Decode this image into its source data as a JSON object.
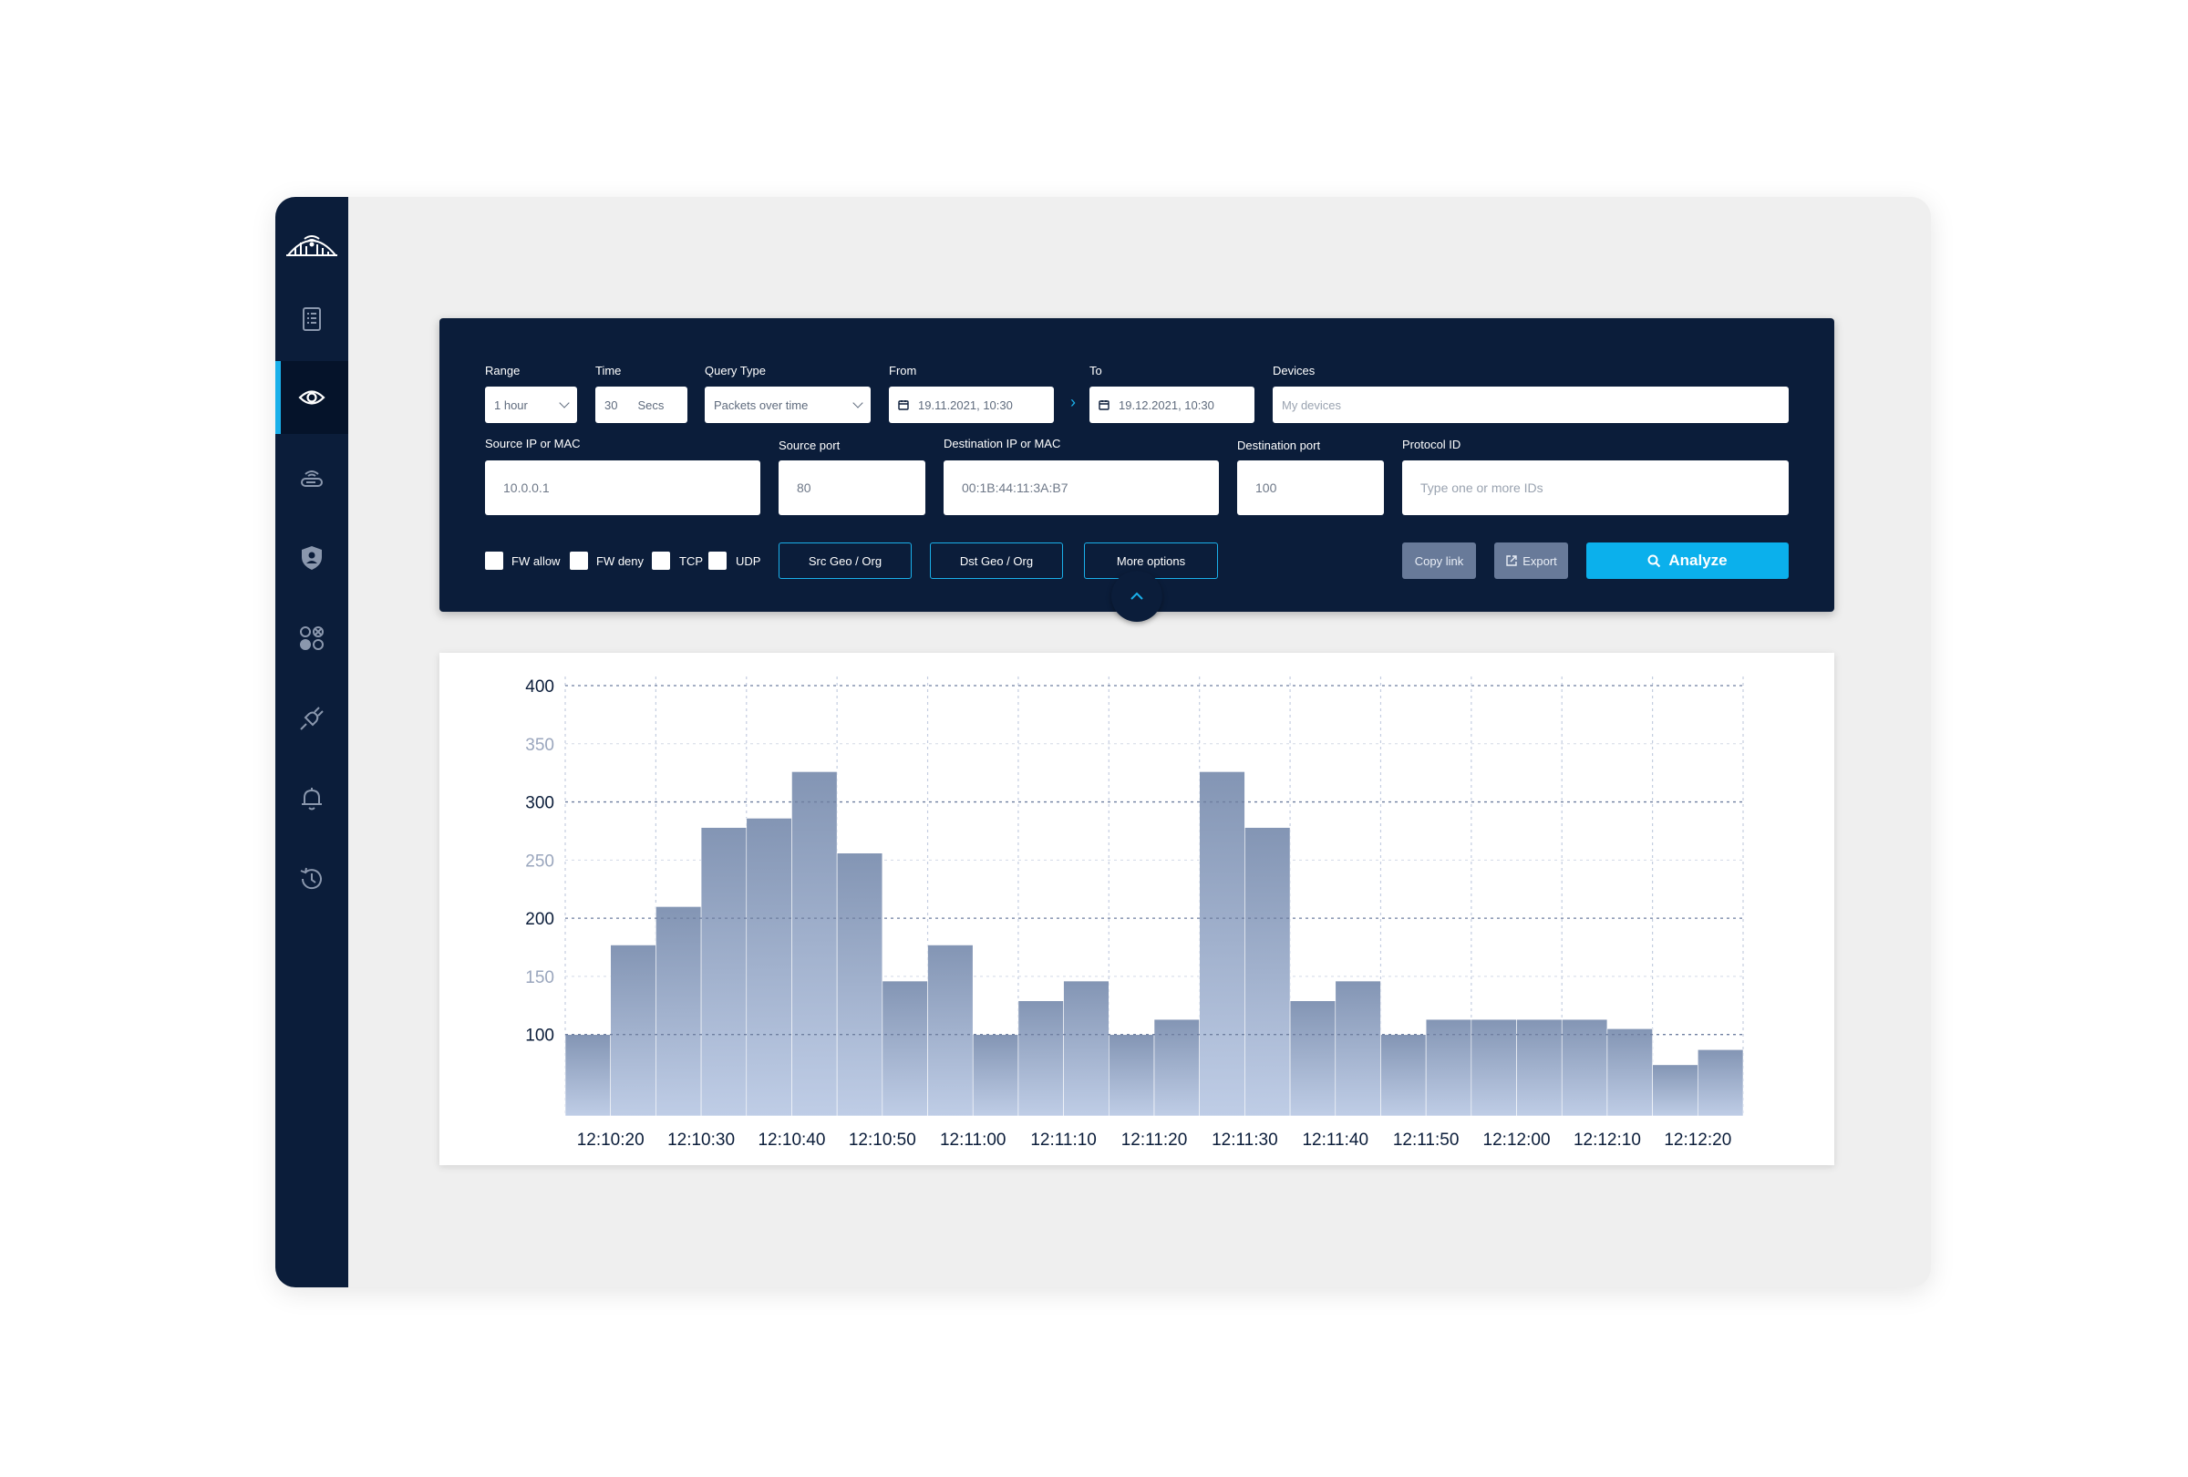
{
  "query": {
    "range": {
      "label": "Range",
      "value": "1 hour"
    },
    "time": {
      "label": "Time",
      "value": "30",
      "unit": "Secs"
    },
    "query_type": {
      "label": "Query Type",
      "value": "Packets over time"
    },
    "from": {
      "label": "From",
      "value": "19.11.2021, 10:30"
    },
    "to": {
      "label": "To",
      "value": "19.12.2021, 10:30"
    },
    "devices": {
      "label": "Devices",
      "placeholder": "My devices"
    },
    "source_ip": {
      "label": "Source IP or MAC",
      "value": "10.0.0.1"
    },
    "source_port": {
      "label": "Source port",
      "value": "80"
    },
    "dest_ip": {
      "label": "Destination IP or MAC",
      "value": "00:1B:44:11:3A:B7"
    },
    "dest_port": {
      "label": "Destination port",
      "value": "100"
    },
    "protocol_id": {
      "label": "Protocol ID",
      "placeholder": "Type one or more IDs"
    },
    "checkboxes": [
      {
        "label": "FW allow",
        "checked": false
      },
      {
        "label": "FW deny",
        "checked": false
      },
      {
        "label": "TCP",
        "checked": false
      },
      {
        "label": "UDP",
        "checked": false
      }
    ],
    "buttons": {
      "src_geo": "Src Geo / Org",
      "dst_geo": "Dst Geo / Org",
      "more_options": "More options",
      "copy_link": "Copy link",
      "export": "Export",
      "analyze": "Analyze"
    }
  },
  "sidebar": {
    "items": [
      {
        "icon": "document-list-icon",
        "active": false
      },
      {
        "icon": "eye-icon",
        "active": true
      },
      {
        "icon": "router-icon",
        "active": false
      },
      {
        "icon": "shield-user-icon",
        "active": false
      },
      {
        "icon": "apps-grid-icon",
        "active": false
      },
      {
        "icon": "plug-icon",
        "active": false
      },
      {
        "icon": "bell-icon",
        "active": false
      },
      {
        "icon": "history-icon",
        "active": false
      }
    ]
  },
  "colors": {
    "sidebar_bg": "#0b1d3a",
    "accent": "#1ab0ea",
    "bar_top": "#8395b4",
    "bar_bottom": "#bfcde6"
  },
  "chart_data": {
    "type": "bar",
    "ylim": [
      30,
      400
    ],
    "yticks": [
      "400",
      "350",
      "300",
      "250",
      "200",
      "150",
      "100"
    ],
    "xtick_labels": [
      "12:10:20",
      "12:10:30",
      "12:10:40",
      "12:10:50",
      "12:11:00",
      "12:11:10",
      "12:11:20",
      "12:11:30",
      "12:11:40",
      "12:11:50",
      "12:12:00",
      "12:12:10",
      "12:12:20"
    ],
    "values": [
      100,
      177,
      210,
      278,
      286,
      326,
      256,
      146,
      177,
      100,
      129,
      146,
      100,
      113,
      326,
      278,
      129,
      146,
      100,
      113,
      113,
      113,
      113,
      105,
      74,
      87
    ],
    "grid": true,
    "legend": "none"
  }
}
